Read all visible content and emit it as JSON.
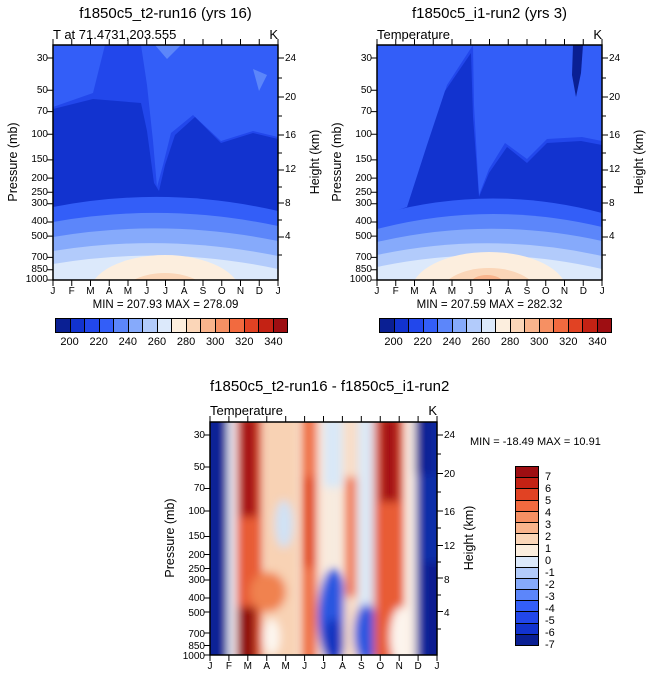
{
  "panels": [
    {
      "title": "f1850c5_t2-run16 (yrs 16)",
      "subtitle_left": "T at 71.4731,203.555",
      "subtitle_right": "K",
      "minmax": "MIN = 207.93 MAX = 278.09"
    },
    {
      "title": "f1850c5_i1-run2 (yrs 3)",
      "subtitle_left": "Temperature",
      "subtitle_right": "K",
      "minmax": "MIN = 207.59 MAX = 282.32"
    },
    {
      "title": "f1850c5_t2-run16 - f1850c5_i1-run2",
      "subtitle_left": "Temperature",
      "subtitle_right": "K",
      "minmax": "MIN = -18.49 MAX =  10.91"
    }
  ],
  "axes": {
    "pressure_label": "Pressure (mb)",
    "height_label": "Height (km)",
    "pressure_ticks": [
      "30",
      "50",
      "70",
      "100",
      "150",
      "200",
      "250",
      "300",
      "400",
      "500",
      "700",
      "850",
      "1000"
    ],
    "height_ticks": [
      "24",
      "20",
      "16",
      "12",
      "8",
      "4"
    ],
    "months": [
      "J",
      "F",
      "M",
      "A",
      "M",
      "J",
      "J",
      "A",
      "S",
      "O",
      "N",
      "D",
      "J"
    ]
  },
  "colorbars": {
    "palette": [
      "#0a1f93",
      "#1233cf",
      "#2247eb",
      "#335ef8",
      "#5c86fa",
      "#86aafb",
      "#b2cbfb",
      "#dce9fb",
      "#fceede",
      "#fbd6b8",
      "#f9b48c",
      "#f69063",
      "#f26a3f",
      "#e14223",
      "#c42214",
      "#9e0e12"
    ],
    "temp_tick_labels": [
      "200",
      "220",
      "240",
      "260",
      "280",
      "300",
      "320",
      "340"
    ],
    "diff_tick_labels": [
      "7",
      "6",
      "5",
      "4",
      "3",
      "2",
      "1",
      "0",
      "-1",
      "-2",
      "-3",
      "-4",
      "-5",
      "-6",
      "-7"
    ]
  },
  "chart_data": [
    {
      "type": "contour",
      "title": "f1850c5_t2-run16 (yrs 16)",
      "field_label": "T at 71.4731,203.555",
      "units": "K",
      "x": [
        "J",
        "F",
        "M",
        "A",
        "M",
        "J",
        "J",
        "A",
        "S",
        "O",
        "N",
        "D",
        "J"
      ],
      "y_pressure_mb": [
        30,
        100,
        200,
        300,
        500,
        700,
        1000
      ],
      "y_height_km_ticks": [
        24,
        20,
        16,
        12,
        8,
        4
      ],
      "levels": [
        200,
        210,
        220,
        230,
        240,
        250,
        260,
        270,
        280,
        290,
        300,
        310,
        320,
        330,
        340
      ],
      "min": 207.93,
      "max": 278.09,
      "values_estimated_K": [
        [
          213,
          215,
          220,
          227,
          232,
          235,
          236,
          234,
          229,
          222,
          216,
          213,
          213
        ],
        [
          215,
          214,
          216,
          219,
          222,
          225,
          226,
          225,
          223,
          220,
          217,
          215,
          215
        ],
        [
          217,
          215,
          216,
          219,
          222,
          226,
          228,
          227,
          224,
          221,
          218,
          217,
          217
        ],
        [
          222,
          221,
          222,
          224,
          227,
          231,
          234,
          233,
          230,
          227,
          224,
          222,
          222
        ],
        [
          243,
          242,
          243,
          246,
          250,
          254,
          257,
          256,
          252,
          249,
          246,
          244,
          243
        ],
        [
          255,
          254,
          256,
          259,
          263,
          268,
          271,
          270,
          266,
          262,
          258,
          256,
          255
        ],
        [
          252,
          251,
          254,
          261,
          268,
          274,
          277,
          276,
          270,
          263,
          256,
          252,
          252
        ]
      ],
      "legend_position": "bottom",
      "grid": false
    },
    {
      "type": "contour",
      "title": "f1850c5_i1-run2 (yrs 3)",
      "field_label": "Temperature",
      "units": "K",
      "x": [
        "J",
        "F",
        "M",
        "A",
        "M",
        "J",
        "J",
        "A",
        "S",
        "O",
        "N",
        "D",
        "J"
      ],
      "y_pressure_mb": [
        30,
        100,
        200,
        300,
        500,
        700,
        1000
      ],
      "y_height_km_ticks": [
        24,
        20,
        16,
        12,
        8,
        4
      ],
      "levels": [
        200,
        210,
        220,
        230,
        240,
        250,
        260,
        270,
        280,
        290,
        300,
        310,
        320,
        330,
        340
      ],
      "min": 207.59,
      "max": 282.32,
      "values_estimated_K": [
        [
          225,
          208,
          211,
          225,
          231,
          236,
          238,
          233,
          229,
          214,
          210,
          225,
          225
        ],
        [
          225,
          222,
          221,
          222,
          223,
          227,
          227,
          226,
          224,
          211,
          212,
          224,
          225
        ],
        [
          225,
          220,
          218,
          222,
          220,
          228,
          231,
          226,
          226,
          214,
          214,
          222,
          225
        ],
        [
          228,
          218,
          216,
          222,
          226,
          234,
          238,
          234,
          233,
          222,
          222,
          228,
          228
        ],
        [
          247,
          236,
          236,
          245,
          248,
          258,
          262,
          258,
          256,
          245,
          245,
          251,
          247
        ],
        [
          258,
          245,
          248,
          259,
          260,
          271,
          277,
          273,
          271,
          259,
          260,
          264,
          258
        ],
        [
          254,
          241,
          245,
          262,
          266,
          279,
          282,
          280,
          276,
          261,
          260,
          261,
          254
        ]
      ],
      "legend_position": "bottom",
      "grid": false
    },
    {
      "type": "contour",
      "title": "f1850c5_t2-run16 - f1850c5_i1-run2",
      "field_label": "Temperature",
      "units": "K",
      "x": [
        "J",
        "F",
        "M",
        "A",
        "M",
        "J",
        "J",
        "A",
        "S",
        "O",
        "N",
        "D",
        "J"
      ],
      "y_pressure_mb": [
        30,
        100,
        200,
        300,
        500,
        700,
        1000
      ],
      "y_height_km_ticks": [
        24,
        20,
        16,
        12,
        8,
        4
      ],
      "levels": [
        -7,
        -6,
        -5,
        -4,
        -3,
        -2,
        -1,
        0,
        1,
        2,
        3,
        4,
        5,
        6,
        7
      ],
      "min": -18.49,
      "max": 10.91,
      "values_estimated_K": [
        [
          -12,
          7,
          9,
          2,
          0,
          -1,
          -2,
          1,
          0,
          8,
          6,
          -5,
          -12
        ],
        [
          -10,
          8,
          10,
          3,
          1,
          -2,
          -1,
          2,
          -1,
          9,
          5,
          -6,
          -10
        ],
        [
          -8,
          5,
          8,
          3,
          2,
          -2,
          -3,
          1,
          -2,
          7,
          4,
          -5,
          -8
        ],
        [
          -6,
          3,
          6,
          2,
          1,
          -3,
          -4,
          -1,
          -3,
          5,
          2,
          -6,
          -6
        ],
        [
          -4,
          6,
          7,
          1,
          2,
          -4,
          -5,
          -2,
          -4,
          4,
          1,
          -7,
          -4
        ],
        [
          -3,
          9,
          8,
          0,
          3,
          -3,
          -6,
          -3,
          -5,
          3,
          -2,
          -8,
          -3
        ],
        [
          -2,
          10,
          9,
          -1,
          2,
          -5,
          -7,
          -4,
          -6,
          2,
          -4,
          -9,
          -2
        ]
      ],
      "legend_position": "right",
      "grid": false
    }
  ]
}
